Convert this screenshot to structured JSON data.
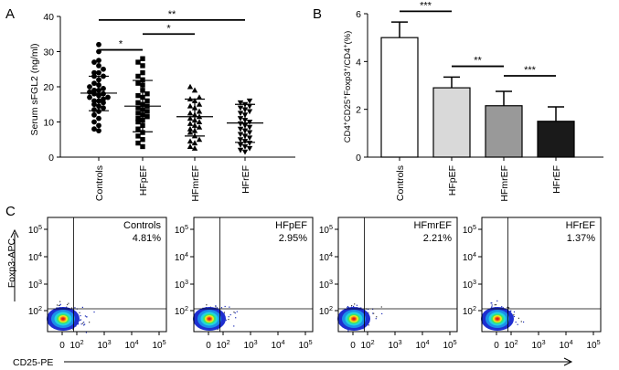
{
  "panel_labels": {
    "a": "A",
    "b": "B",
    "c": "C"
  },
  "chart_data": [
    {
      "type": "scatter",
      "panel": "A",
      "ylabel": "Serum sFGL2 (ng/ml)",
      "ylim": [
        0,
        40
      ],
      "yticks": [
        "0",
        "10",
        "20",
        "30",
        "40"
      ],
      "categories": [
        "Controls",
        "HFpEF",
        "HFmrEF",
        "HFrEF"
      ],
      "markers": [
        "circle",
        "square",
        "triangle-up",
        "triangle-down"
      ],
      "summary": {
        "mean": [
          18.2,
          14.5,
          11.5,
          9.7
        ],
        "sd_low": [
          13.2,
          7.2,
          6.0,
          4.2
        ],
        "sd_high": [
          23.0,
          21.8,
          16.5,
          15.0
        ]
      },
      "points": [
        [
          30,
          32,
          27,
          27.5,
          26,
          25,
          24,
          24,
          23,
          23,
          22,
          21,
          20.5,
          20,
          19.5,
          19,
          19,
          18.5,
          18,
          18,
          17.5,
          17,
          17,
          16.5,
          16,
          16,
          15.5,
          15,
          14.5,
          14,
          13.5,
          13,
          12,
          11,
          10,
          9,
          8,
          7.5
        ],
        [
          28,
          27,
          26,
          24,
          23,
          22,
          21,
          20.5,
          19,
          18,
          17.5,
          17,
          16,
          15.5,
          15,
          14.5,
          14,
          13.5,
          13,
          12.5,
          12,
          11.5,
          11,
          10.5,
          10,
          9,
          8,
          7,
          6,
          5,
          4,
          3
        ],
        [
          20,
          19,
          17,
          16.5,
          16,
          15,
          14.5,
          14,
          13,
          12.5,
          12,
          11.5,
          11,
          10.5,
          10,
          9.5,
          9,
          8.5,
          8,
          7.5,
          7,
          6,
          5,
          4.5,
          4,
          3,
          2.5
        ],
        [
          16,
          15.5,
          15,
          14.5,
          14,
          13.5,
          13,
          12.5,
          12,
          11,
          10.5,
          10,
          9.5,
          9,
          8.5,
          8,
          7.5,
          7,
          6.5,
          6,
          5.5,
          5,
          4.5,
          4,
          3.5,
          3,
          2.5,
          2,
          1.5
        ]
      ],
      "significance": [
        {
          "from": 0,
          "to": 1,
          "label": "*",
          "y": 30.5
        },
        {
          "from": 1,
          "to": 2,
          "label": "*",
          "y": 35
        },
        {
          "from": 0,
          "to": 3,
          "label": "**",
          "y": 39
        }
      ]
    },
    {
      "type": "bar",
      "panel": "B",
      "ylabel_parts": [
        {
          "text": "CD4"
        },
        {
          "text": "+",
          "sup": true
        },
        {
          "text": "CD25"
        },
        {
          "text": "+",
          "sup": true
        },
        {
          "text": "Foxp3"
        },
        {
          "text": "+",
          "sup": true
        },
        {
          "text": "/CD4"
        },
        {
          "text": "+",
          "sup": true
        },
        {
          "text": "(%)"
        }
      ],
      "ylim": [
        0,
        6
      ],
      "yticks": [
        "0",
        "2",
        "4",
        "6"
      ],
      "categories": [
        "Controls",
        "HFpEF",
        "HFmrEF",
        "HFrEF"
      ],
      "values": [
        5.0,
        2.9,
        2.15,
        1.5
      ],
      "errors": [
        0.65,
        0.45,
        0.6,
        0.6
      ],
      "colors": [
        "#ffffff",
        "#d9d9d9",
        "#999999",
        "#1a1a1a"
      ],
      "significance": [
        {
          "from": 0,
          "to": 1,
          "label": "***",
          "y": 6.1
        },
        {
          "from": 1,
          "to": 2,
          "label": "**",
          "y": 3.8
        },
        {
          "from": 2,
          "to": 3,
          "label": "***",
          "y": 3.4
        }
      ]
    },
    {
      "type": "flow-cytometry",
      "panel": "C",
      "xlabel": "CD25-PE",
      "ylabel": "Foxp3-APC",
      "xticks": [
        {
          "b": "0"
        },
        {
          "b": "10",
          "e": "2"
        },
        {
          "b": "10",
          "e": "3"
        },
        {
          "b": "10",
          "e": "4"
        },
        {
          "b": "10",
          "e": "5"
        }
      ],
      "yticks": [
        {
          "b": "10",
          "e": "2"
        },
        {
          "b": "10",
          "e": "3"
        },
        {
          "b": "10",
          "e": "4"
        },
        {
          "b": "10",
          "e": "5"
        }
      ],
      "plots": [
        {
          "name": "Controls",
          "percent": "4.81%"
        },
        {
          "name": "HFpEF",
          "percent": "2.95%"
        },
        {
          "name": "HFmrEF",
          "percent": "2.21%"
        },
        {
          "name": "HFrEF",
          "percent": "1.37%"
        }
      ]
    }
  ]
}
